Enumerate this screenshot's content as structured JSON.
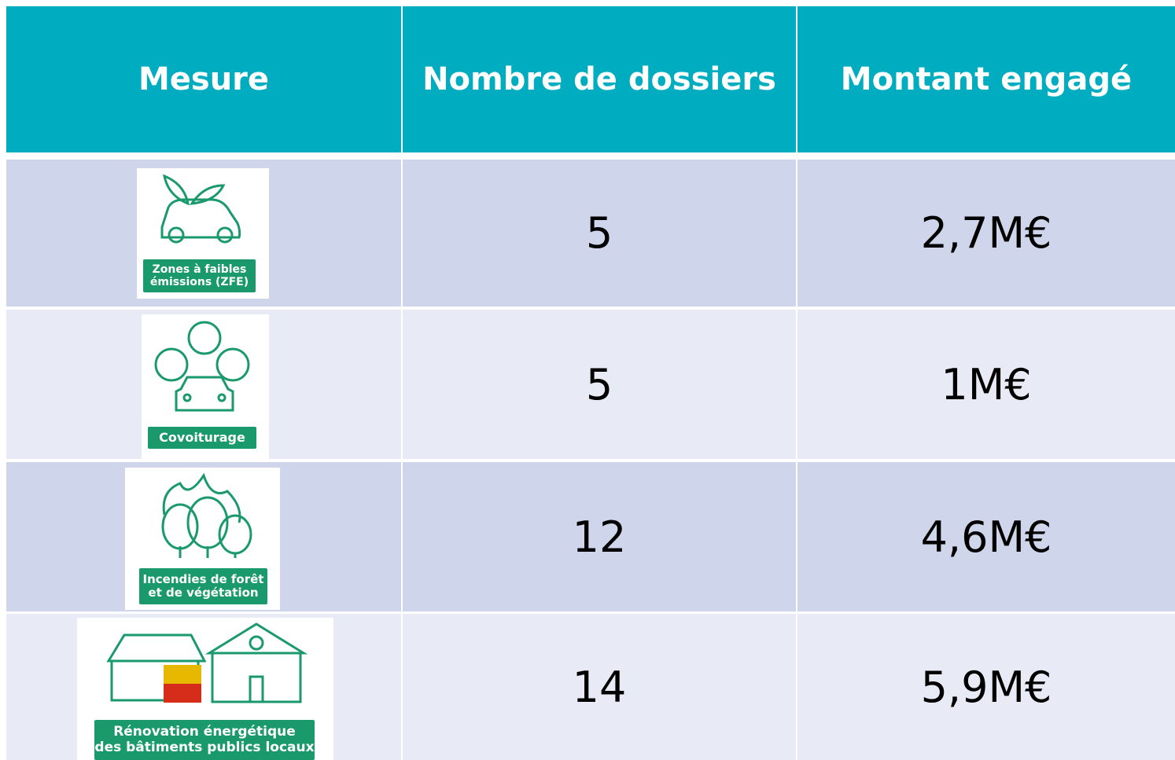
{
  "table": {
    "header": [
      "Mesure",
      "Nombre de dossiers",
      "Montant engagé"
    ],
    "rows": [
      {
        "mesure": [
          "Zones à faibles",
          "émissions (ZFE)"
        ],
        "dossiers": 5,
        "montant": "2,7M€"
      },
      {
        "mesure": [
          "Covoiturage"
        ],
        "dossiers": 5,
        "montant": "1M€"
      },
      {
        "mesure": [
          "Incendies de forêt",
          "et de végétation"
        ],
        "dossiers": 12,
        "montant": "4,6M€"
      },
      {
        "mesure": [
          "Rénovation énergétique",
          "des bâtiments publics locaux"
        ],
        "dossiers": 14,
        "montant": "5,9M€"
      }
    ]
  }
}
